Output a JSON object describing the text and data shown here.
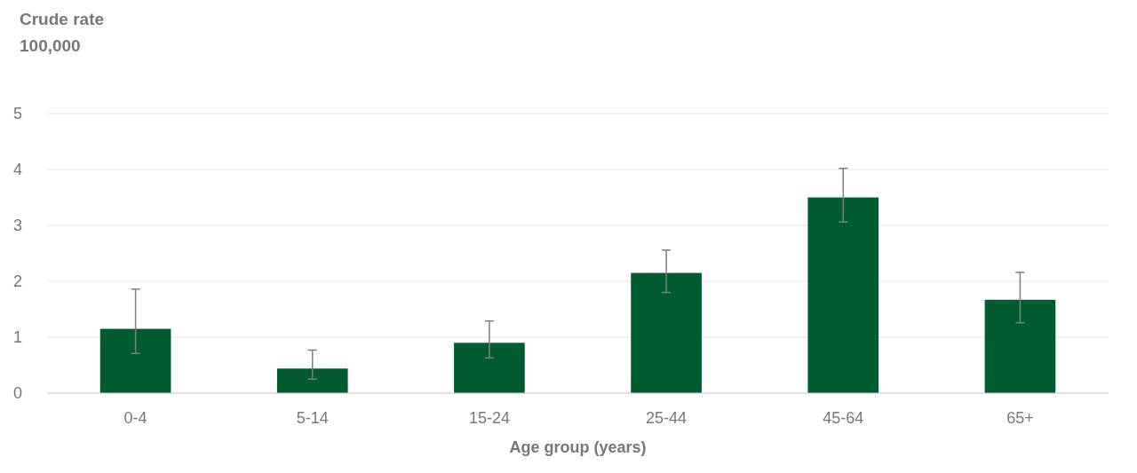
{
  "chart_data": {
    "type": "bar",
    "ylabel": "Crude rate\n100,000",
    "xlabel": "Age group (years)",
    "categories": [
      "0-4",
      "5-14",
      "15-24",
      "25-44",
      "45-64",
      "65+"
    ],
    "values": [
      1.15,
      0.44,
      0.9,
      2.15,
      3.5,
      1.67
    ],
    "errors": [
      [
        0.71,
        1.86
      ],
      [
        0.25,
        0.77
      ],
      [
        0.63,
        1.29
      ],
      [
        1.8,
        2.56
      ],
      [
        3.06,
        4.02
      ],
      [
        1.26,
        2.16
      ]
    ],
    "color": "#005c30",
    "ylim": [
      0,
      5
    ],
    "yticks": [
      0,
      1,
      2,
      3,
      4,
      5
    ],
    "grid": "y"
  }
}
